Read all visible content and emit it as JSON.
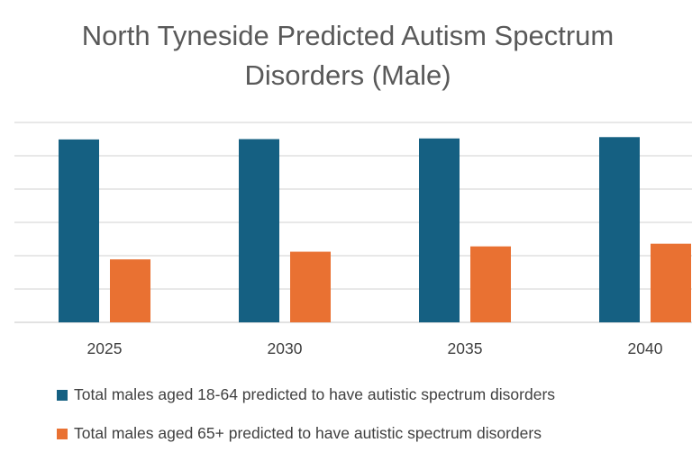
{
  "chart_data": {
    "type": "bar",
    "title_lines": [
      "North Tyneside Predicted Autism Spectrum",
      "Disorders (Male)"
    ],
    "categories": [
      "2025",
      "2030",
      "2035",
      "2040"
    ],
    "series": [
      {
        "name": "Total males aged 18-64 predicted to have autistic spectrum disorders",
        "color": "#156082",
        "values": [
          5.49,
          5.5,
          5.52,
          5.56
        ]
      },
      {
        "name": "Total males aged 65+ predicted to have autistic spectrum disorders",
        "color": "#E97132",
        "values": [
          1.89,
          2.12,
          2.28,
          2.36
        ]
      }
    ],
    "value_units": "gridline intervals (y-axis unlabeled)",
    "ylim": [
      0,
      6
    ],
    "grid": true,
    "legend_position": "bottom",
    "xlabel": "",
    "ylabel": ""
  }
}
